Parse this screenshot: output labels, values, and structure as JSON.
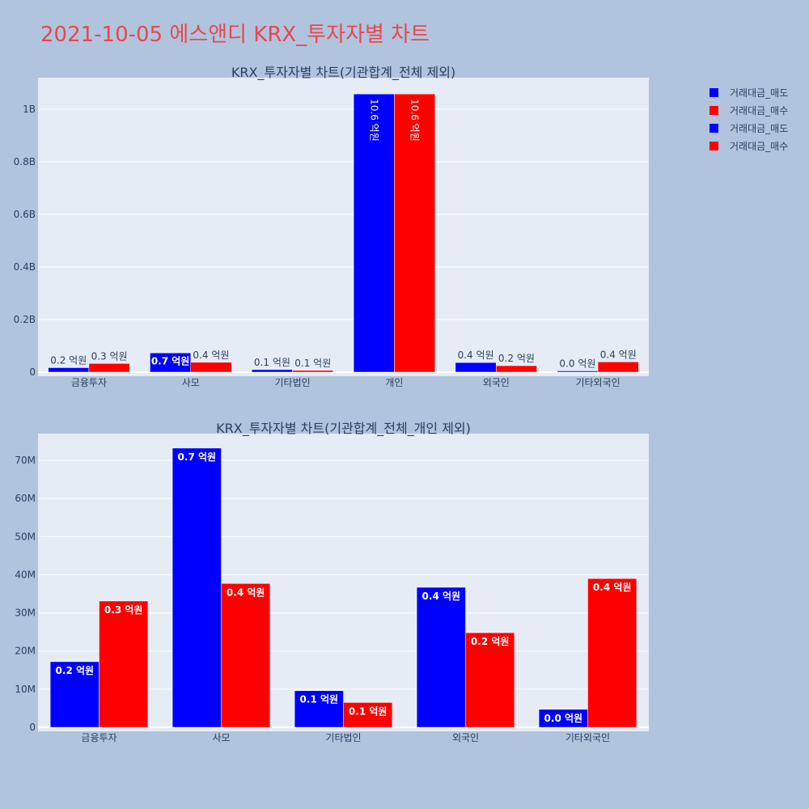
{
  "title": "2021-10-05 에스앤디 KRX_투자자별 차트",
  "colors": {
    "sell": "#0000ff",
    "buy": "#ff0000",
    "plot_bg": "#e5ecf6",
    "grid": "#ffffff",
    "axis_text": "#2a3f5f",
    "title": "#e8474f"
  },
  "legend": {
    "placement": "top-right",
    "entries": [
      {
        "label": "거래대금_매도",
        "color": "#0000ff"
      },
      {
        "label": "거래대금_매수",
        "color": "#ff0000"
      },
      {
        "label": "거래대금_매도",
        "color": "#0000ff"
      },
      {
        "label": "거래대금_매수",
        "color": "#ff0000"
      }
    ]
  },
  "chart_data": [
    {
      "type": "bar",
      "title": "KRX_투자자별 차트(기관합계_전체 제외)",
      "categories": [
        "금융투자",
        "사모",
        "기타법인",
        "개인",
        "외국인",
        "기타외국인"
      ],
      "series": [
        {
          "name": "거래대금_매도",
          "values": [
            17000000,
            73000000,
            9500000,
            1058000000,
            36500000,
            4700000
          ],
          "labels": [
            "0.2 억원",
            "0.7 억원",
            "0.1 억원",
            "10.6 억원",
            "0.4 억원",
            "0.0 억원"
          ]
        },
        {
          "name": "거래대금_매수",
          "values": [
            33000000,
            37500000,
            6500000,
            1058000000,
            24500000,
            39000000
          ],
          "labels": [
            "0.3 억원",
            "0.4 억원",
            "0.1 억원",
            "10.6 억원",
            "0.2 억원",
            "0.4 억원"
          ]
        }
      ],
      "ylim": [
        0,
        1120000000
      ],
      "yticks": [
        0,
        200000000,
        400000000,
        600000000,
        800000000,
        1000000000
      ],
      "ytick_labels": [
        "0",
        "0.2B",
        "0.4B",
        "0.6B",
        "0.8B",
        "1B"
      ],
      "grid": true
    },
    {
      "type": "bar",
      "title": "KRX_투자자별 차트(기관합계_전체_개인 제외)",
      "categories": [
        "금융투자",
        "사모",
        "기타법인",
        "외국인",
        "기타외국인"
      ],
      "series": [
        {
          "name": "거래대금_매도",
          "values": [
            17200000,
            73200000,
            9600000,
            36700000,
            4700000
          ],
          "labels": [
            "0.2 억원",
            "0.7 억원",
            "0.1 억원",
            "0.4 억원",
            "0.0 억원"
          ]
        },
        {
          "name": "거래대금_매수",
          "values": [
            33100000,
            37700000,
            6500000,
            24800000,
            39000000
          ],
          "labels": [
            "0.3 억원",
            "0.4 억원",
            "0.1 억원",
            "0.2 억원",
            "0.4 억원"
          ]
        }
      ],
      "ylim": [
        0,
        77000000
      ],
      "yticks": [
        0,
        10000000,
        20000000,
        30000000,
        40000000,
        50000000,
        60000000,
        70000000
      ],
      "ytick_labels": [
        "0",
        "10M",
        "20M",
        "30M",
        "40M",
        "50M",
        "60M",
        "70M"
      ],
      "grid": true
    }
  ]
}
